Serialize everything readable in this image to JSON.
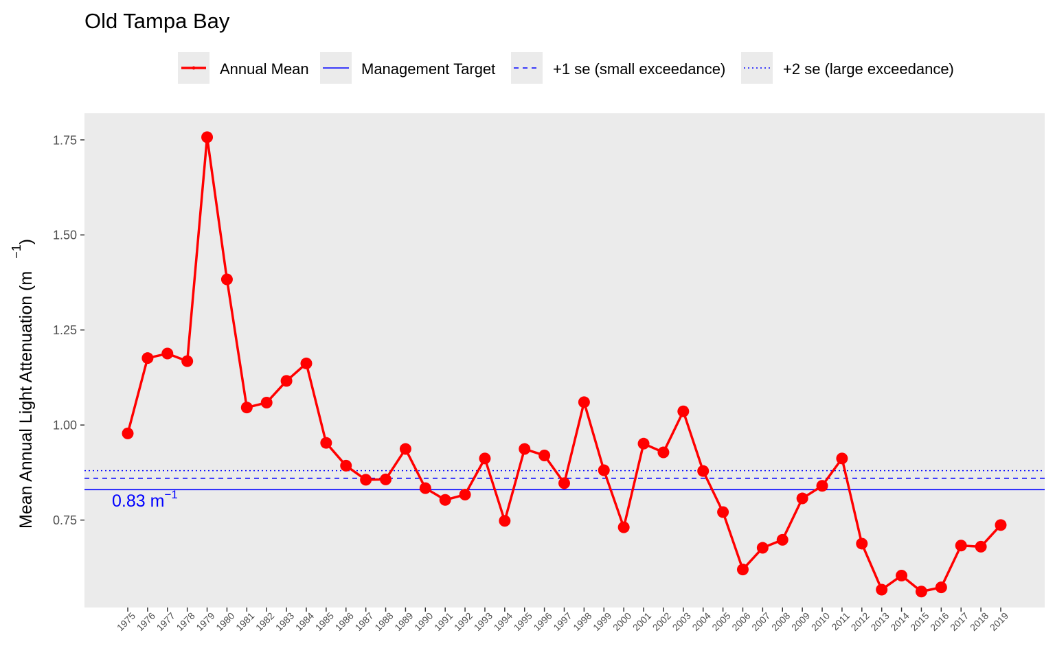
{
  "chart_data": {
    "type": "line",
    "title": "Old Tampa Bay",
    "ylabel": "Mean Annual Light Attenuation (m",
    "ylabel_superscript": "−1",
    "ylabel_close": ")",
    "ylim": [
      0.52,
      1.82
    ],
    "yticks": [
      0.75,
      1.0,
      1.25,
      1.5,
      1.75
    ],
    "ytick_labels": [
      "0.75",
      "1.00",
      "1.25",
      "1.50",
      "1.75"
    ],
    "x": [
      1975,
      1976,
      1977,
      1978,
      1979,
      1980,
      1981,
      1982,
      1983,
      1984,
      1985,
      1986,
      1987,
      1988,
      1989,
      1990,
      1991,
      1992,
      1993,
      1994,
      1995,
      1996,
      1997,
      1998,
      1999,
      2000,
      2001,
      2002,
      2003,
      2004,
      2005,
      2006,
      2007,
      2008,
      2009,
      2010,
      2011,
      2012,
      2013,
      2014,
      2015,
      2016,
      2017,
      2018,
      2019
    ],
    "series": [
      {
        "name": "Annual Mean",
        "color": "#ff0000",
        "values": [
          0.978,
          1.176,
          1.188,
          1.168,
          1.757,
          1.383,
          1.046,
          1.059,
          1.116,
          1.162,
          0.953,
          0.893,
          0.856,
          0.857,
          0.937,
          0.834,
          0.803,
          0.817,
          0.912,
          0.748,
          0.937,
          0.92,
          0.847,
          1.06,
          0.881,
          0.731,
          0.951,
          0.928,
          1.036,
          0.879,
          0.771,
          0.62,
          0.677,
          0.698,
          0.807,
          0.84,
          0.912,
          0.688,
          0.567,
          0.604,
          0.562,
          0.573,
          0.683,
          0.68,
          0.737
        ]
      }
    ],
    "reference_lines": [
      {
        "name": "Management Target",
        "y": 0.83,
        "color": "#0000ff",
        "style": "solid"
      },
      {
        "name": "+1 se (small exceedance)",
        "y": 0.86,
        "color": "#0000ff",
        "style": "dashed"
      },
      {
        "name": "+2 se (large exceedance)",
        "y": 0.88,
        "color": "#0000ff",
        "style": "dotted"
      }
    ],
    "annotation": {
      "text": "0.83 m",
      "superscript": "−1",
      "color": "#0000ff"
    },
    "legend": {
      "placement": "top",
      "entries": [
        "Annual Mean",
        "Management Target",
        "+1 se (small exceedance)",
        "+2 se (large exceedance)"
      ]
    },
    "background": "#ebebeb",
    "grid": false
  }
}
